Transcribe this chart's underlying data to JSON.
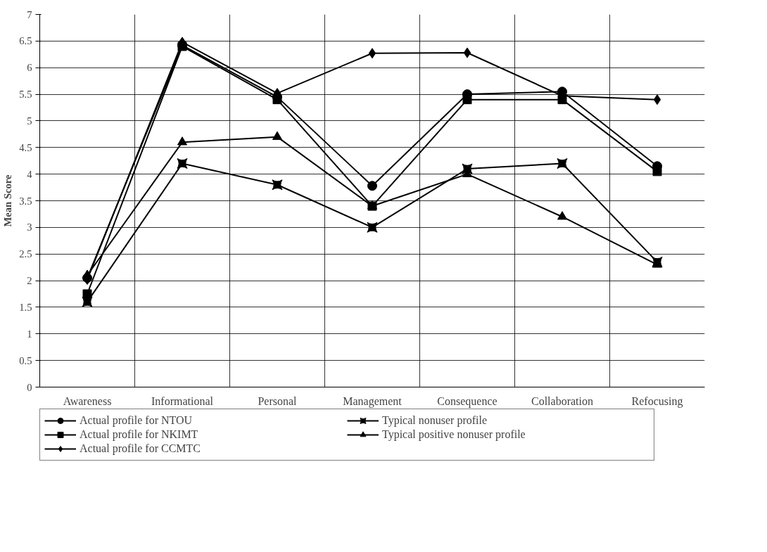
{
  "chart_data": {
    "type": "line",
    "ylabel": "Mean Score",
    "categories": [
      "Awareness",
      "Informational",
      "Personal",
      "Management",
      "Consequence",
      "Collaboration",
      "Refocusing"
    ],
    "ylim": [
      0,
      7
    ],
    "yticks": [
      0,
      0.5,
      1,
      1.5,
      2,
      2.5,
      3,
      3.5,
      4,
      4.5,
      5,
      5.5,
      6,
      6.5,
      7
    ],
    "grid": true,
    "legend": "bottom",
    "line_style": "solid",
    "series": [
      {
        "name": "Actual profile for NTOU",
        "color": "#000000",
        "marker": "circle",
        "values": [
          2.05,
          6.42,
          5.45,
          3.78,
          5.5,
          5.55,
          4.15
        ]
      },
      {
        "name": "Actual profile for NKIMT",
        "color": "#000000",
        "marker": "square",
        "values": [
          1.75,
          6.4,
          5.4,
          3.4,
          5.4,
          5.4,
          4.05
        ]
      },
      {
        "name": "Actual profile for CCMTC",
        "color": "#000000",
        "marker": "diamond",
        "values": [
          2.02,
          6.48,
          5.52,
          6.27,
          6.28,
          5.47,
          5.4
        ]
      },
      {
        "name": "Typical nonuser profile",
        "color": "#000000",
        "marker": "cross",
        "values": [
          1.6,
          4.2,
          3.8,
          3.0,
          4.1,
          4.2,
          2.35
        ]
      },
      {
        "name": "Typical positive nonuser profile",
        "color": "#000000",
        "marker": "triangle",
        "values": [
          2.1,
          4.6,
          4.7,
          3.4,
          4.0,
          3.2,
          2.3
        ]
      }
    ]
  }
}
